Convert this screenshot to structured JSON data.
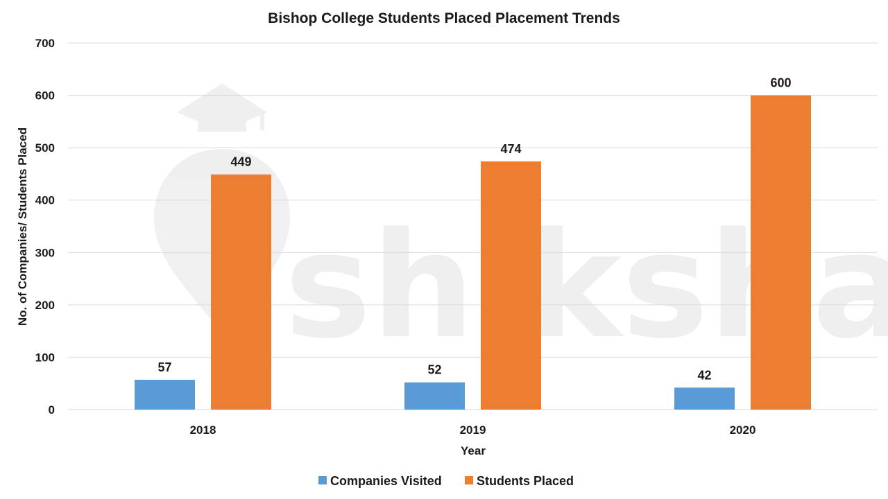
{
  "watermark": {
    "text": "shiksha",
    "logo_icon": "graduation-cap-and-pin-icon"
  },
  "chart_data": {
    "type": "bar",
    "title": "Bishop College Students Placed Placement Trends",
    "xlabel": "Year",
    "ylabel": "No. of Companies/ Students Placed",
    "categories": [
      "2018",
      "2019",
      "2020"
    ],
    "series": [
      {
        "name": "Companies Visited",
        "color": "#5b9bd5",
        "values": [
          57,
          52,
          42
        ]
      },
      {
        "name": "Students Placed",
        "color": "#ed7d31",
        "values": [
          449,
          474,
          600
        ]
      }
    ],
    "ylim": [
      0,
      700
    ],
    "yticks": [
      0,
      100,
      200,
      300,
      400,
      500,
      600,
      700
    ],
    "grid": true,
    "legend_position": "bottom"
  }
}
